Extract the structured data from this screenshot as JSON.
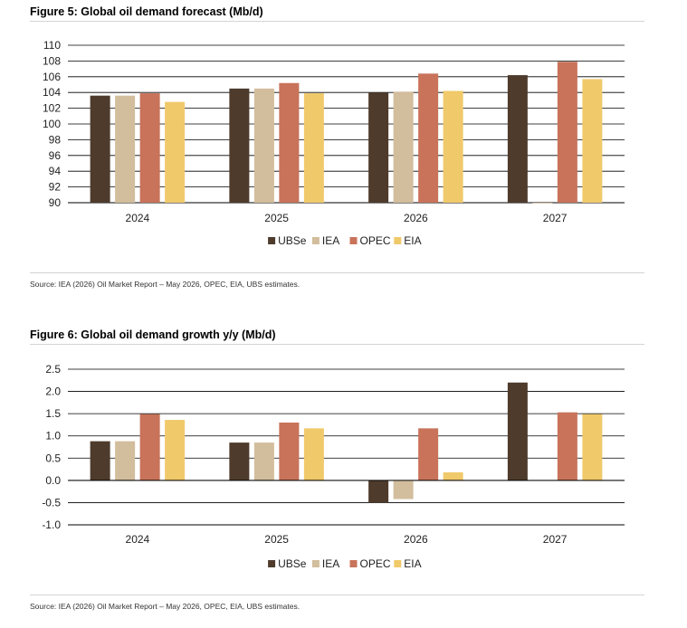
{
  "figures": [
    {
      "title": "Figure 5: Global oil demand forecast (Mb/d)",
      "source": "Source: IEA (2026) Oil Market Report – May 2026, OPEC, EIA, UBS estimates."
    },
    {
      "title": "Figure 6: Global oil demand growth y/y (Mb/d)",
      "source": "Source: IEA (2026) Oil Market Report – May 2026, OPEC, EIA, UBS estimates."
    }
  ],
  "colors": {
    "UBSe": "#4e3b2c",
    "IEA": "#d2bd9c",
    "OPEC": "#c8735a",
    "EIA": "#f0c96a",
    "axis": "#000000"
  },
  "chart_data": [
    {
      "type": "bar",
      "title": "Figure 5: Global oil demand forecast (Mb/d)",
      "categories": [
        "2024",
        "2025",
        "2026",
        "2027"
      ],
      "series": [
        {
          "name": "UBSe",
          "values": [
            103.6,
            104.5,
            104.0,
            106.2
          ]
        },
        {
          "name": "IEA",
          "values": [
            103.6,
            104.5,
            104.1,
            90.0
          ]
        },
        {
          "name": "OPEC",
          "values": [
            103.9,
            105.2,
            106.4,
            107.9
          ]
        },
        {
          "name": "EIA",
          "values": [
            102.8,
            103.9,
            104.2,
            105.7
          ]
        }
      ],
      "ylim": [
        90,
        110
      ],
      "yticks": [
        "90",
        "92",
        "94",
        "96",
        "98",
        "100",
        "102",
        "104",
        "106",
        "108",
        "110"
      ],
      "yticks_values": [
        90,
        92,
        94,
        96,
        98,
        100,
        102,
        104,
        106,
        108,
        110
      ],
      "grid": true,
      "legend": "bottom-center"
    },
    {
      "type": "bar",
      "title": "Figure 6: Global oil demand growth y/y (Mb/d)",
      "categories": [
        "2024",
        "2025",
        "2026",
        "2027"
      ],
      "series": [
        {
          "name": "UBSe",
          "values": [
            0.88,
            0.85,
            -0.5,
            2.2
          ]
        },
        {
          "name": "IEA",
          "values": [
            0.88,
            0.85,
            -0.42,
            null
          ]
        },
        {
          "name": "OPEC",
          "values": [
            1.49,
            1.3,
            1.17,
            1.53
          ]
        },
        {
          "name": "EIA",
          "values": [
            1.36,
            1.17,
            0.18,
            1.49
          ]
        }
      ],
      "ylim": [
        -1.0,
        2.5
      ],
      "yticks": [
        "-1.0",
        "-0.5",
        "0.0",
        "0.5",
        "1.0",
        "1.5",
        "2.0",
        "2.5"
      ],
      "yticks_values": [
        -1.0,
        -0.5,
        0.0,
        0.5,
        1.0,
        1.5,
        2.0,
        2.5
      ],
      "grid": true,
      "legend": "bottom-center"
    }
  ]
}
